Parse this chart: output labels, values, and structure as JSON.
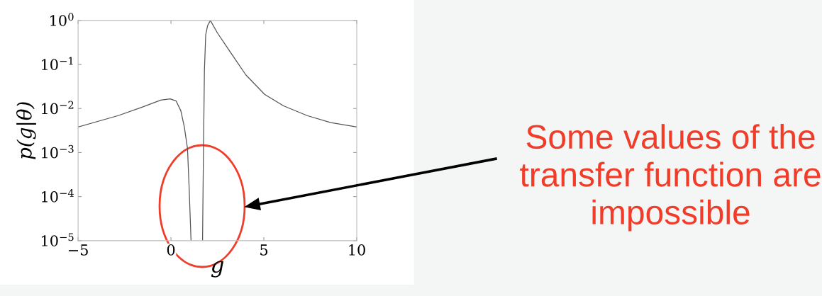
{
  "chart_data": {
    "type": "line",
    "xlabel": "g",
    "ylabel": "p(g|θ)",
    "log": "y",
    "xlim": [
      -5,
      10
    ],
    "xticks": [
      {
        "value": -5,
        "label": "−5"
      },
      0,
      5,
      10
    ],
    "ylim": [
      1e-05,
      1
    ],
    "yticks": [
      {
        "value": 1e-05,
        "label": "10$^{−5}$"
      },
      {
        "value": 0.0001,
        "label": "10$^{−4}$"
      },
      {
        "value": 0.001,
        "label": "10$^{−3}$"
      },
      {
        "value": 0.01,
        "label": "10$^{−2}$"
      },
      {
        "value": 0.1,
        "label": "10$^{−1}$"
      },
      {
        "value": 1,
        "label": "10$^{0}$"
      }
    ],
    "grid": false,
    "series": [
      {
        "color": "#555555",
        "x": [
          -5,
          -2.84,
          -1.56,
          -0.55,
          -0.04,
          0.28,
          0.53,
          0.72,
          0.89,
          0.98,
          1.08,
          null,
          1.7,
          1.74,
          1.8,
          1.87,
          1.97,
          2.12,
          2.5,
          3.01,
          3.52,
          4.03,
          5.04,
          6.06,
          7.33,
          8.6,
          10
        ],
        "values": [
          0.0038,
          0.0069,
          0.0107,
          0.0155,
          0.0166,
          0.0148,
          0.0089,
          0.0038,
          0.00123,
          0.00015,
          1e-05,
          null,
          1e-05,
          0.00052,
          0.072,
          0.47,
          0.76,
          1,
          0.52,
          0.25,
          0.12,
          0.058,
          0.021,
          0.0115,
          0.0069,
          0.0048,
          0.0038
        ]
      }
    ],
    "annotations": [
      "Some values of the transfer function are impossible"
    ]
  }
}
